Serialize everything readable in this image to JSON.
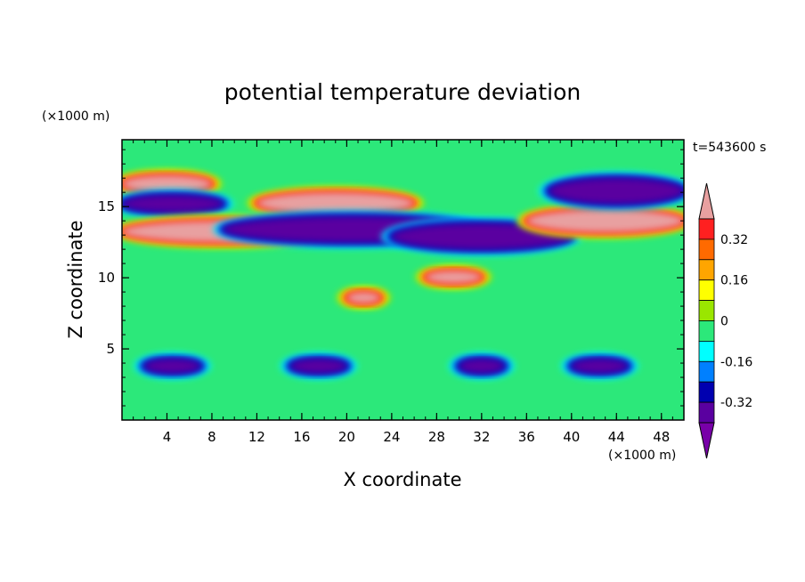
{
  "chart_data": {
    "type": "heatmap",
    "title": "potential temperature deviation",
    "xlabel": "X coordinate",
    "ylabel": "Z coordinate",
    "x_unit": "(×1000 m)",
    "y_unit": "(×1000 m)",
    "time_label": "t=543600 s",
    "xlim": [
      0,
      50
    ],
    "ylim": [
      0,
      19.7
    ],
    "x_ticks": [
      4,
      8,
      12,
      16,
      20,
      24,
      28,
      32,
      36,
      40,
      44,
      48
    ],
    "y_ticks": [
      5,
      10,
      15
    ],
    "colorbar": {
      "levels": [
        -0.4,
        -0.32,
        -0.24,
        -0.16,
        -0.08,
        0,
        0.08,
        0.16,
        0.24,
        0.32,
        0.4
      ],
      "labeled_levels": [
        0.32,
        0.16,
        0,
        -0.16,
        -0.32
      ],
      "colors": [
        "#e8a0a0",
        "#ff2020",
        "#ff6a00",
        "#ffa500",
        "#ffff00",
        "#9ae600",
        "#2ce87a",
        "#00ffff",
        "#0080ff",
        "#0000b0",
        "#5a00a0",
        "#7800a8"
      ],
      "extend": "both"
    },
    "features": [
      {
        "kind": "warm",
        "x": [
          0,
          8
        ],
        "z": [
          16.0,
          17.2
        ]
      },
      {
        "kind": "cold",
        "x": [
          0,
          9
        ],
        "z": [
          14.6,
          15.8
        ]
      },
      {
        "kind": "warm",
        "x": [
          0,
          18
        ],
        "z": [
          12.5,
          14.0
        ]
      },
      {
        "kind": "warm",
        "x": [
          12,
          26
        ],
        "z": [
          14.5,
          16.0
        ]
      },
      {
        "kind": "cold",
        "x": [
          9,
          32
        ],
        "z": [
          12.5,
          14.3
        ]
      },
      {
        "kind": "cold",
        "x": [
          24,
          40
        ],
        "z": [
          12.0,
          13.8
        ]
      },
      {
        "kind": "warm",
        "x": [
          36,
          50
        ],
        "z": [
          13.2,
          14.8
        ]
      },
      {
        "kind": "cold",
        "x": [
          38,
          50
        ],
        "z": [
          15.2,
          17.0
        ]
      },
      {
        "kind": "warm",
        "x": [
          27,
          32
        ],
        "z": [
          9.6,
          10.5
        ]
      },
      {
        "kind": "warm",
        "x": [
          20,
          23
        ],
        "z": [
          8.2,
          9.0
        ]
      },
      {
        "kind": "cold",
        "x": [
          2,
          7
        ],
        "z": [
          3.3,
          4.3
        ]
      },
      {
        "kind": "cold",
        "x": [
          15,
          20
        ],
        "z": [
          3.3,
          4.3
        ]
      },
      {
        "kind": "cold",
        "x": [
          30,
          34
        ],
        "z": [
          3.3,
          4.3
        ]
      },
      {
        "kind": "cold",
        "x": [
          40,
          45
        ],
        "z": [
          3.3,
          4.3
        ]
      }
    ]
  }
}
